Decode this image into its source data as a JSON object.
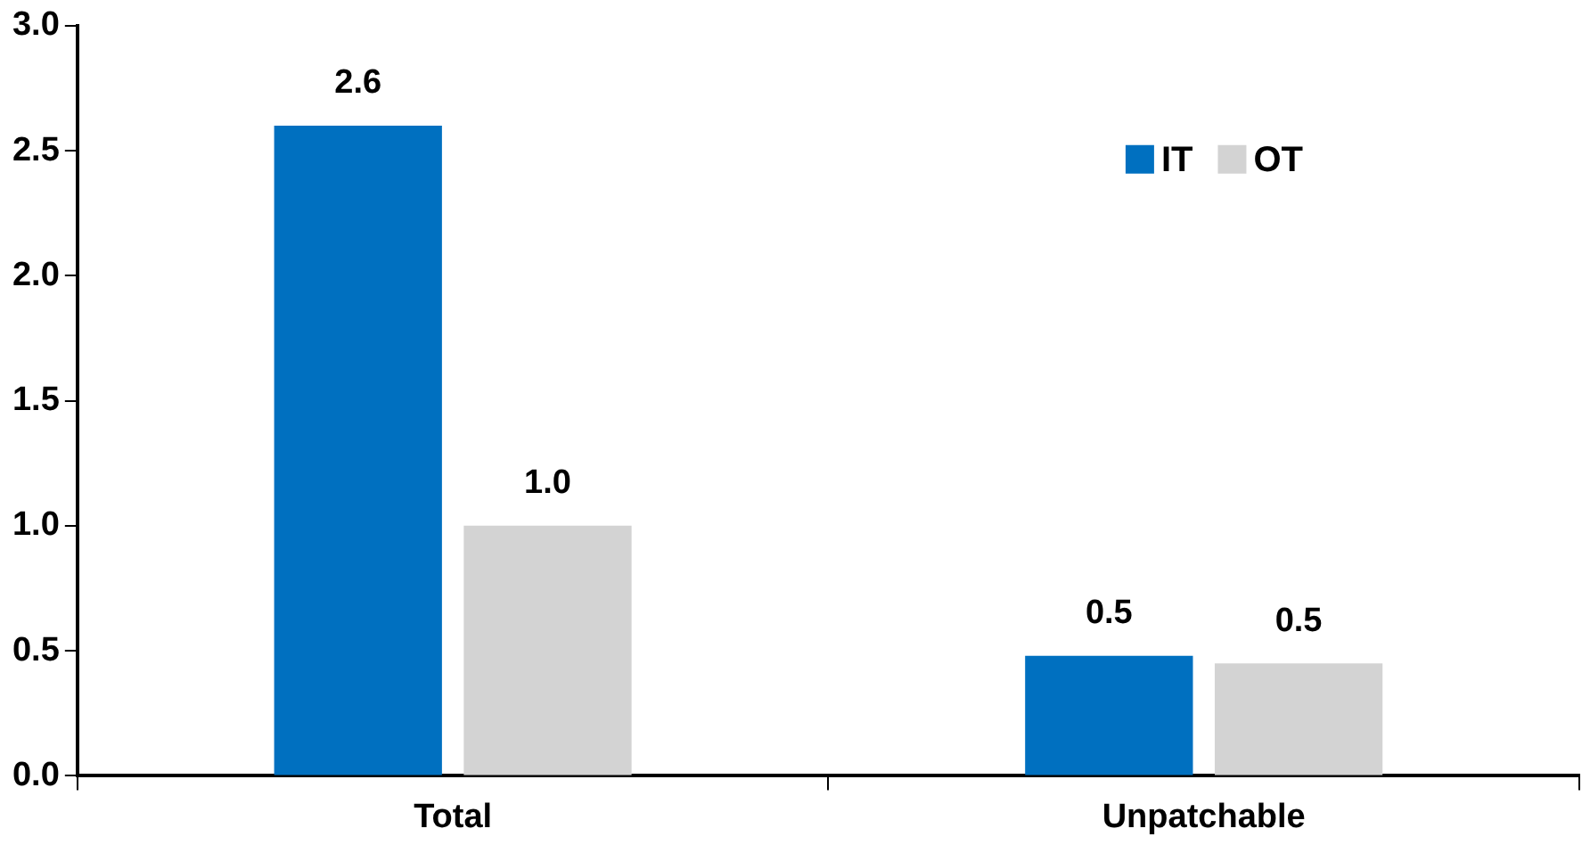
{
  "chart_data": {
    "type": "bar",
    "categories": [
      "Total",
      "Unpatchable"
    ],
    "series": [
      {
        "name": "IT",
        "color": "#0070c0",
        "values": [
          2.6,
          0.48
        ],
        "value_labels": [
          "2.6",
          "0.5"
        ]
      },
      {
        "name": "OT",
        "color": "#d3d3d3",
        "values": [
          1.0,
          0.45
        ],
        "value_labels": [
          "1.0",
          "0.5"
        ]
      }
    ],
    "ylim": [
      0,
      3
    ],
    "yticks": [
      {
        "value": 0,
        "label": "0.0"
      },
      {
        "value": 0.5,
        "label": "0.5"
      },
      {
        "value": 1,
        "label": "1.0"
      },
      {
        "value": 1.5,
        "label": "1.5"
      },
      {
        "value": 2,
        "label": "2.0"
      },
      {
        "value": 2.5,
        "label": "2.5"
      },
      {
        "value": 3,
        "label": "3.0"
      }
    ],
    "grid": false,
    "legend": "top right"
  }
}
